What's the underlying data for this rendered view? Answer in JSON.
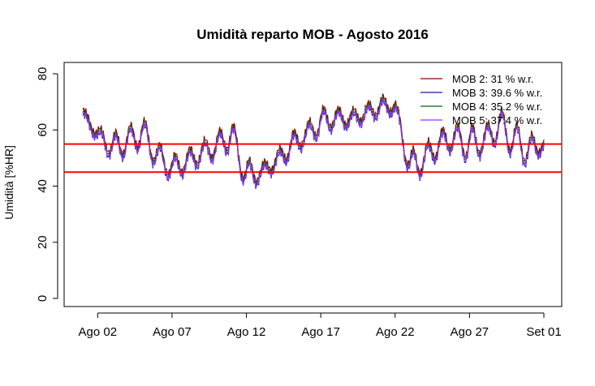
{
  "chart_data": {
    "type": "line",
    "title": "Umidità reparto MOB - Agosto 2016",
    "xlabel": "",
    "ylabel": "Umidità [%HR]",
    "x_start": "2016-08-01",
    "x_end": "2016-09-01",
    "xlim": [
      "2016-08-01",
      "2016-09-01"
    ],
    "ylim": [
      0,
      80
    ],
    "x_ticks": [
      "Ago 02",
      "Ago 07",
      "Ago 12",
      "Ago 17",
      "Ago 22",
      "Ago 27",
      "Set 01"
    ],
    "y_ticks": [
      "0",
      "20",
      "40",
      "60",
      "80"
    ],
    "grid": false,
    "legend_position": "top-right",
    "reference_lines": [
      {
        "y": 55,
        "color": "#ff0000"
      },
      {
        "y": 45,
        "color": "#ff0000"
      }
    ],
    "daily_dates": [
      "2016-08-01",
      "2016-08-02",
      "2016-08-03",
      "2016-08-04",
      "2016-08-05",
      "2016-08-06",
      "2016-08-07",
      "2016-08-08",
      "2016-08-09",
      "2016-08-10",
      "2016-08-11",
      "2016-08-12",
      "2016-08-13",
      "2016-08-14",
      "2016-08-15",
      "2016-08-16",
      "2016-08-17",
      "2016-08-18",
      "2016-08-19",
      "2016-08-20",
      "2016-08-21",
      "2016-08-22",
      "2016-08-23",
      "2016-08-24",
      "2016-08-25",
      "2016-08-26",
      "2016-08-27",
      "2016-08-28",
      "2016-08-29",
      "2016-08-30",
      "2016-08-31",
      "2016-09-01"
    ],
    "daily_peaks": [
      67,
      60,
      58,
      60,
      64,
      55,
      50,
      52,
      55,
      58,
      63,
      49,
      47,
      51,
      58,
      61,
      67,
      67,
      66,
      68,
      71,
      70,
      52,
      54,
      59,
      61,
      61,
      60,
      67,
      62,
      58,
      56
    ],
    "daily_troughs": [
      64,
      56,
      49,
      51,
      54,
      46,
      42,
      45,
      48,
      50,
      53,
      38,
      42,
      46,
      50,
      55,
      58,
      61,
      61,
      63,
      65,
      66,
      41,
      45,
      51,
      53,
      48,
      52,
      56,
      50,
      47,
      53
    ],
    "series": [
      {
        "name": "MOB 2:  31 % w.r.",
        "color": "#8b0000",
        "offset": 1.2
      },
      {
        "name": "MOB 3:  39.6 % w.r.",
        "color": "#1a1aa0",
        "offset": -0.8
      },
      {
        "name": "MOB 4:  35.2 % w.r.",
        "color": "#006400",
        "offset": 0.3
      },
      {
        "name": "MOB 5:  37.4 % w.r.",
        "color": "#9b30ff",
        "offset": -0.4
      }
    ]
  }
}
